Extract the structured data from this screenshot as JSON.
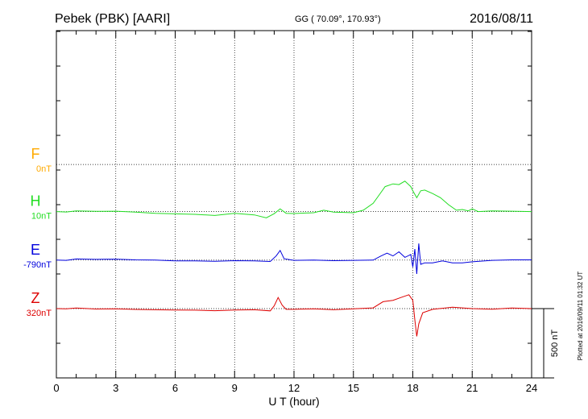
{
  "header": {
    "station": "Pebek (PBK)  [AARI]",
    "coords": "GG ( 70.09°, 170.93°)",
    "date": "2016/08/11"
  },
  "footer": {
    "plotted": "Plotted at 2016/09/11 01:32 UT",
    "scale_label": "500 nT"
  },
  "colors": {
    "F": "#ffaa00",
    "H": "#22dd22",
    "E": "#0000dd",
    "Z": "#dd0000"
  },
  "chart_data": {
    "type": "line",
    "title": "",
    "xlabel": "U T (hour)",
    "ylabel": "",
    "xlim": [
      0,
      24
    ],
    "ylim": [
      -500,
      1500
    ],
    "grid": true,
    "x_ticks": [
      "0",
      "3",
      "6",
      "9",
      "12",
      "15",
      "18",
      "21",
      "24"
    ],
    "scale_bar_nT": 500,
    "series": [
      {
        "name": "F",
        "baseline_label": "0nT",
        "baseline_nT": 1040,
        "color": "#ffaa00",
        "points": []
      },
      {
        "name": "H",
        "baseline_label": "10nT",
        "baseline_nT": 700,
        "color": "#22dd22",
        "points": [
          [
            0,
            700
          ],
          [
            0.5,
            697
          ],
          [
            1,
            705
          ],
          [
            2,
            702
          ],
          [
            3,
            703
          ],
          [
            4,
            696
          ],
          [
            5,
            688
          ],
          [
            6,
            684
          ],
          [
            7,
            680
          ],
          [
            8,
            672
          ],
          [
            9,
            688
          ],
          [
            10,
            676
          ],
          [
            10.6,
            655
          ],
          [
            11,
            685
          ],
          [
            11.3,
            720
          ],
          [
            11.6,
            688
          ],
          [
            12,
            686
          ],
          [
            13,
            692
          ],
          [
            13.5,
            710
          ],
          [
            14,
            696
          ],
          [
            15,
            692
          ],
          [
            15.5,
            710
          ],
          [
            16,
            760
          ],
          [
            16.3,
            820
          ],
          [
            16.6,
            880
          ],
          [
            17,
            900
          ],
          [
            17.3,
            895
          ],
          [
            17.6,
            920
          ],
          [
            17.9,
            880
          ],
          [
            18,
            850
          ],
          [
            18.2,
            800
          ],
          [
            18.4,
            850
          ],
          [
            18.6,
            855
          ],
          [
            19,
            830
          ],
          [
            19.4,
            800
          ],
          [
            19.8,
            750
          ],
          [
            20.2,
            710
          ],
          [
            20.5,
            715
          ],
          [
            20.8,
            705
          ],
          [
            21,
            720
          ],
          [
            21.3,
            700
          ],
          [
            22,
            705
          ],
          [
            23,
            703
          ],
          [
            24,
            700
          ]
        ]
      },
      {
        "name": "E",
        "baseline_label": "-790nT",
        "baseline_nT": 350,
        "color": "#0000dd",
        "points": [
          [
            0,
            350
          ],
          [
            0.5,
            348
          ],
          [
            1,
            358
          ],
          [
            2,
            355
          ],
          [
            3,
            357
          ],
          [
            4,
            352
          ],
          [
            5,
            350
          ],
          [
            6,
            345
          ],
          [
            7,
            345
          ],
          [
            8,
            342
          ],
          [
            9,
            346
          ],
          [
            10,
            345
          ],
          [
            10.8,
            340
          ],
          [
            11.1,
            380
          ],
          [
            11.3,
            420
          ],
          [
            11.5,
            360
          ],
          [
            12,
            348
          ],
          [
            13,
            350
          ],
          [
            14,
            346
          ],
          [
            15,
            348
          ],
          [
            16,
            350
          ],
          [
            16.4,
            380
          ],
          [
            16.7,
            400
          ],
          [
            17,
            380
          ],
          [
            17.3,
            410
          ],
          [
            17.6,
            370
          ],
          [
            17.9,
            390
          ],
          [
            18,
            300
          ],
          [
            18.1,
            430
          ],
          [
            18.2,
            250
          ],
          [
            18.3,
            470
          ],
          [
            18.4,
            320
          ],
          [
            18.6,
            330
          ],
          [
            19,
            330
          ],
          [
            19.5,
            345
          ],
          [
            20,
            330
          ],
          [
            20.5,
            330
          ],
          [
            21,
            338
          ],
          [
            22,
            348
          ],
          [
            23,
            352
          ],
          [
            24,
            352
          ]
        ]
      },
      {
        "name": "Z",
        "baseline_label": "320nT",
        "baseline_nT": 0,
        "color": "#dd0000",
        "points": [
          [
            0,
            0
          ],
          [
            0.5,
            -2
          ],
          [
            1,
            4
          ],
          [
            2,
            -3
          ],
          [
            3,
            -1
          ],
          [
            4,
            -6
          ],
          [
            5,
            -8
          ],
          [
            6,
            -10
          ],
          [
            7,
            -11
          ],
          [
            8,
            -15
          ],
          [
            9,
            -10
          ],
          [
            10,
            -8
          ],
          [
            10.8,
            -16
          ],
          [
            11,
            20
          ],
          [
            11.2,
            80
          ],
          [
            11.4,
            25
          ],
          [
            11.6,
            -5
          ],
          [
            12,
            -5
          ],
          [
            13,
            -1
          ],
          [
            14,
            -8
          ],
          [
            15,
            -2
          ],
          [
            16,
            5
          ],
          [
            16.5,
            50
          ],
          [
            17,
            60
          ],
          [
            17.4,
            80
          ],
          [
            17.8,
            100
          ],
          [
            18,
            60
          ],
          [
            18.1,
            -80
          ],
          [
            18.2,
            -200
          ],
          [
            18.3,
            -110
          ],
          [
            18.5,
            -30
          ],
          [
            19,
            -5
          ],
          [
            20,
            10
          ],
          [
            20.5,
            5
          ],
          [
            21,
            0
          ],
          [
            22,
            -4
          ],
          [
            23,
            4
          ],
          [
            24,
            0
          ]
        ]
      }
    ]
  }
}
